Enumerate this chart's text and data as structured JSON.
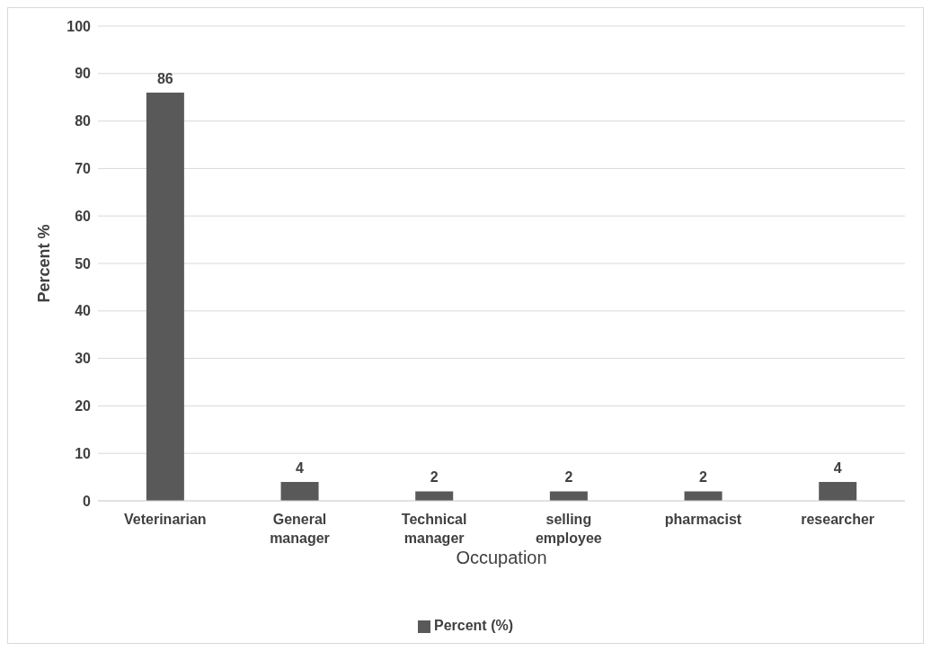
{
  "chart_data": {
    "type": "bar",
    "xlabel": "Occupation",
    "ylabel": "Percent %",
    "categories": [
      "Veterinarian",
      "General manager",
      "Technical manager",
      "selling employee",
      "pharmacist",
      "researcher"
    ],
    "series": [
      {
        "name": "Percent (%)",
        "color": "#595959",
        "values": [
          86,
          4,
          2,
          2,
          2,
          4
        ]
      }
    ],
    "ylim": [
      0,
      100
    ],
    "yticks": [
      0,
      10,
      20,
      30,
      40,
      50,
      60,
      70,
      80,
      90,
      100
    ],
    "grid": "y",
    "legend": "bottom",
    "data_labels": true
  }
}
